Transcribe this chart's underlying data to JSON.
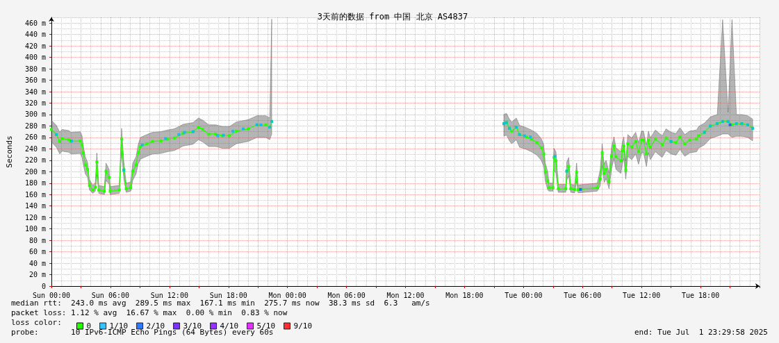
{
  "chart_data": {
    "type": "line",
    "title": "3天前的数据 from 中国 北京 AS4837",
    "ylabel": "Seconds",
    "legend_title": "loss color:",
    "xlim": [
      "2025-06-29T00:00",
      "2025-07-02T00:00"
    ],
    "ylim": [
      0,
      470
    ],
    "xticks": [
      {
        "value": "2025-06-29T00:00",
        "label": "Sun 00:00"
      },
      {
        "value": "2025-06-29T03:00",
        "label": null
      },
      {
        "value": "2025-06-29T06:00",
        "label": "Sun 06:00"
      },
      {
        "value": "2025-06-29T09:00",
        "label": null
      },
      {
        "value": "2025-06-29T12:00",
        "label": "Sun 12:00"
      },
      {
        "value": "2025-06-29T15:00",
        "label": null
      },
      {
        "value": "2025-06-29T18:00",
        "label": "Sun 18:00"
      },
      {
        "value": "2025-06-29T21:00",
        "label": null
      },
      {
        "value": "2025-06-30T00:00",
        "label": "Mon 00:00"
      },
      {
        "value": "2025-06-30T03:00",
        "label": null
      },
      {
        "value": "2025-06-30T06:00",
        "label": "Mon 06:00"
      },
      {
        "value": "2025-06-30T09:00",
        "label": null
      },
      {
        "value": "2025-06-30T12:00",
        "label": "Mon 12:00"
      },
      {
        "value": "2025-06-30T15:00",
        "label": null
      },
      {
        "value": "2025-06-30T18:00",
        "label": "Mon 18:00"
      },
      {
        "value": "2025-06-30T21:00",
        "label": null
      },
      {
        "value": "2025-07-01T00:00",
        "label": "Tue 00:00"
      },
      {
        "value": "2025-07-01T03:00",
        "label": null
      },
      {
        "value": "2025-07-01T06:00",
        "label": "Tue 06:00"
      },
      {
        "value": "2025-07-01T09:00",
        "label": null
      },
      {
        "value": "2025-07-01T12:00",
        "label": "Tue 12:00"
      },
      {
        "value": "2025-07-01T15:00",
        "label": null
      },
      {
        "value": "2025-07-01T18:00",
        "label": "Tue 18:00"
      },
      {
        "value": "2025-07-01T21:00",
        "label": null
      },
      {
        "value": "2025-07-02T00:00",
        "label": null
      }
    ],
    "yticks": [
      0,
      {
        "value": 20,
        "label": "20 m"
      },
      {
        "value": 40,
        "label": "40 m"
      },
      {
        "value": 60,
        "label": "60 m"
      },
      {
        "value": 80,
        "label": "80 m"
      },
      {
        "value": 100,
        "label": "100 m"
      },
      {
        "value": 120,
        "label": "120 m"
      },
      {
        "value": 140,
        "label": "140 m"
      },
      {
        "value": 160,
        "label": "160 m"
      },
      {
        "value": 180,
        "label": "180 m"
      },
      {
        "value": 200,
        "label": "200 m"
      },
      {
        "value": 220,
        "label": "220 m"
      },
      {
        "value": 240,
        "label": "240 m"
      },
      {
        "value": 260,
        "label": "260 m"
      },
      {
        "value": 280,
        "label": "280 m"
      },
      {
        "value": 300,
        "label": "300 m"
      },
      {
        "value": 320,
        "label": "320 m"
      },
      {
        "value": 340,
        "label": "340 m"
      },
      {
        "value": 360,
        "label": "360 m"
      },
      {
        "value": 380,
        "label": "380 m"
      },
      {
        "value": 400,
        "label": "400 m"
      },
      {
        "value": 420,
        "label": "420 m"
      },
      {
        "value": 440,
        "label": "440 m"
      },
      {
        "value": 460,
        "label": "460 m"
      }
    ],
    "grid": true,
    "legend": "bottom left",
    "marker": "square",
    "series": [
      {
        "name": "0",
        "color": "#26ff00",
        "x": [
          "2025-06-29T00:00",
          "2025-06-29T00:30",
          "2025-06-29T00:51",
          "2025-06-29T01:04",
          "2025-06-29T01:46",
          "2025-06-29T02:00",
          "2025-06-29T02:56",
          "2025-06-29T03:07",
          "2025-06-29T03:14",
          "2025-06-29T03:27",
          "2025-06-29T03:41",
          "2025-06-29T03:52",
          "2025-06-29T04:13",
          "2025-06-29T04:28",
          "2025-06-29T04:37",
          "2025-06-29T04:49",
          "2025-06-29T05:23",
          "2025-06-29T05:33",
          "2025-06-29T05:52",
          "2025-06-29T05:58",
          "2025-06-29T06:54",
          "2025-06-29T07:08",
          "2025-06-29T07:22",
          "2025-06-29T07:36",
          "2025-06-29T08:04",
          "2025-06-29T08:16",
          "2025-06-29T08:36",
          "2025-06-29T08:50",
          "2025-06-29T09:03",
          "2025-06-29T09:42",
          "2025-06-29T10:17",
          "2025-06-29T11:06",
          "2025-06-29T11:48",
          "2025-06-29T12:30",
          "2025-06-29T13:24",
          "2025-06-29T14:24",
          "2025-06-29T14:57",
          "2025-06-29T15:24",
          "2025-06-29T16:00",
          "2025-06-29T16:42",
          "2025-06-29T17:24",
          "2025-06-29T18:06",
          "2025-06-29T18:48",
          "2025-06-29T20:00",
          "2025-06-29T20:54",
          "2025-06-29T21:48",
          "2025-06-29T22:12",
          "2025-06-29T22:24",
          "2025-06-30T10:00",
          "2025-06-30T22:00",
          "2025-06-30T22:16",
          "2025-06-30T22:34",
          "2025-06-30T22:48",
          "2025-06-30T23:16",
          "2025-06-30T23:36",
          "2025-07-01T00:18",
          "2025-07-01T00:48",
          "2025-07-01T01:22",
          "2025-07-01T01:48",
          "2025-07-01T02:04",
          "2025-07-01T02:13",
          "2025-07-01T02:28",
          "2025-07-01T02:36",
          "2025-07-01T03:00",
          "2025-07-01T03:06",
          "2025-07-01T03:18",
          "2025-07-01T03:32",
          "2025-07-01T04:18",
          "2025-07-01T04:24",
          "2025-07-01T04:36",
          "2025-07-01T04:48",
          "2025-07-01T05:12",
          "2025-07-01T05:24",
          "2025-07-01T05:33",
          "2025-07-01T07:30",
          "2025-07-01T07:48",
          "2025-07-01T08:00",
          "2025-07-01T08:12",
          "2025-07-01T08:24",
          "2025-07-01T08:42",
          "2025-07-01T08:57",
          "2025-07-01T09:12",
          "2025-07-01T09:24",
          "2025-07-01T09:54",
          "2025-07-01T10:04",
          "2025-07-01T10:12",
          "2025-07-01T10:24",
          "2025-07-01T10:36",
          "2025-07-01T11:00",
          "2025-07-01T11:24",
          "2025-07-01T11:42",
          "2025-07-01T12:00",
          "2025-07-01T12:12",
          "2025-07-01T12:30",
          "2025-07-01T12:42",
          "2025-07-01T12:54",
          "2025-07-01T13:24",
          "2025-07-01T14:06",
          "2025-07-01T14:30",
          "2025-07-01T15:00",
          "2025-07-01T15:30",
          "2025-07-01T15:54",
          "2025-07-01T16:24",
          "2025-07-01T16:54",
          "2025-07-01T17:36",
          "2025-07-01T17:48",
          "2025-07-01T18:24",
          "2025-07-01T19:00",
          "2025-07-01T19:42",
          "2025-07-01T20:15",
          "2025-07-01T20:48",
          "2025-07-01T21:12",
          "2025-07-01T21:39",
          "2025-07-01T22:12",
          "2025-07-01T22:48",
          "2025-07-01T23:18"
        ],
        "values": [
          274,
          265,
          253,
          258,
          256,
          253,
          254,
          247,
          233,
          212,
          204,
          176,
          168,
          173,
          217,
          168,
          166,
          201,
          190,
          166,
          168,
          257,
          203,
          170,
          172,
          201,
          212,
          234,
          244,
          249,
          253,
          254,
          257,
          259,
          267,
          270,
          278,
          274,
          266,
          266,
          263,
          263,
          271,
          275,
          282,
          282,
          278,
          288,
          null,
          284,
          286,
          276,
          271,
          278,
          265,
          261,
          257,
          251,
          242,
          231,
          199,
          184,
          172,
          172,
          225,
          219,
          170,
          170,
          201,
          209,
          170,
          169,
          199,
          169,
          172,
          187,
          233,
          197,
          204,
          182,
          227,
          245,
          226,
          219,
          237,
          245,
          203,
          249,
          243,
          253,
          235,
          255,
          255,
          231,
          255,
          243,
          257,
          247,
          259,
          253,
          251,
          261,
          249,
          255,
          257,
          263,
          269,
          280,
          284,
          288,
          288,
          282,
          284,
          284,
          282,
          276
        ],
        "lower": [
          252,
          243,
          231,
          236,
          234,
          231,
          232,
          225,
          213,
          196,
          190,
          168,
          162,
          166,
          195,
          162,
          160,
          185,
          178,
          160,
          162,
          235,
          187,
          164,
          166,
          185,
          196,
          214,
          222,
          227,
          231,
          232,
          235,
          237,
          245,
          248,
          256,
          252,
          244,
          244,
          241,
          241,
          249,
          253,
          260,
          260,
          256,
          266,
          null,
          262,
          264,
          254,
          249,
          256,
          243,
          239,
          235,
          229,
          220,
          209,
          183,
          168,
          166,
          166,
          203,
          197,
          164,
          164,
          185,
          193,
          164,
          163,
          183,
          163,
          166,
          175,
          211,
          181,
          188,
          170,
          205,
          223,
          204,
          197,
          215,
          223,
          187,
          227,
          221,
          231,
          213,
          233,
          233,
          209,
          233,
          221,
          235,
          225,
          237,
          231,
          229,
          239,
          227,
          233,
          235,
          241,
          247,
          258,
          262,
          266,
          266,
          260,
          262,
          262,
          260,
          254
        ],
        "upper": [
          290,
          281,
          269,
          274,
          272,
          269,
          270,
          263,
          247,
          226,
          216,
          186,
          176,
          181,
          233,
          176,
          174,
          215,
          204,
          174,
          176,
          276,
          217,
          180,
          182,
          215,
          226,
          248,
          260,
          265,
          269,
          270,
          273,
          275,
          283,
          286,
          294,
          290,
          282,
          282,
          279,
          279,
          287,
          291,
          298,
          298,
          294,
          467,
          null,
          300,
          302,
          292,
          287,
          294,
          281,
          277,
          273,
          267,
          258,
          247,
          215,
          200,
          180,
          180,
          241,
          235,
          178,
          178,
          217,
          225,
          178,
          177,
          215,
          177,
          180,
          203,
          249,
          213,
          220,
          198,
          243,
          261,
          242,
          235,
          253,
          261,
          219,
          265,
          259,
          269,
          251,
          271,
          271,
          247,
          271,
          259,
          273,
          263,
          275,
          269,
          267,
          277,
          265,
          271,
          273,
          279,
          285,
          296,
          300,
          466,
          304,
          466,
          300,
          300,
          298,
          292
        ]
      },
      {
        "name": "1/10",
        "type": "scatter",
        "color": "#00b8ff",
        "x": [
          "2025-06-29T00:30",
          "2025-06-29T02:03",
          "2025-06-29T07:22",
          "2025-06-29T09:14",
          "2025-06-29T11:36",
          "2025-06-29T12:57",
          "2025-06-29T13:33",
          "2025-06-29T14:24",
          "2025-06-29T16:54",
          "2025-06-29T17:30",
          "2025-06-29T18:27",
          "2025-06-29T19:30",
          "2025-06-29T20:54",
          "2025-06-29T21:18",
          "2025-06-29T22:12",
          "2025-06-29T22:24",
          "2025-06-30T22:00",
          "2025-06-30T22:16",
          "2025-06-30T22:34",
          "2025-06-30T23:16",
          "2025-06-30T23:36",
          "2025-07-01T00:06",
          "2025-07-01T00:42",
          "2025-07-01T03:12",
          "2025-07-01T04:24",
          "2025-07-01T15:00",
          "2025-07-01T18:24",
          "2025-07-01T19:00",
          "2025-07-01T19:42",
          "2025-07-01T20:15",
          "2025-07-01T20:48",
          "2025-07-01T21:39",
          "2025-07-01T22:12",
          "2025-07-01T22:48",
          "2025-07-01T23:18"
        ],
        "values": [
          265,
          254,
          203,
          247,
          258,
          265,
          269,
          270,
          263,
          264,
          271,
          275,
          282,
          282,
          278,
          288,
          284,
          286,
          276,
          278,
          265,
          263,
          261,
          227,
          201,
          253,
          269,
          280,
          284,
          288,
          288,
          284,
          284,
          282,
          276
        ]
      },
      {
        "name": "2/10",
        "type": "scatter",
        "color": "#0059ff",
        "x": [
          "2025-07-01T05:48",
          "2025-07-01T21:00"
        ],
        "values": [
          169,
          282
        ]
      },
      {
        "name": "3/10",
        "type": "scatter",
        "color": "#5e00ff"
      },
      {
        "name": "4/10",
        "type": "scatter",
        "color": "#7e00ff"
      },
      {
        "name": "5/10",
        "type": "scatter",
        "color": "#dd00ff"
      },
      {
        "name": "9/10",
        "type": "scatter",
        "color": "#ff0000"
      }
    ],
    "annotations": [
      "median rtt:  243.0 ms avg  289.5 ms max  167.1 ms min  275.7 ms now  38.3 ms sd  6.3   am/s",
      "packet loss: 1.12 % avg  16.67 % max  0.00 % min  0.83 % now",
      "probe:       10 IPv6-ICMP Echo Pings (64 Bytes) every 60s",
      "end: Tue Jul  1 23:29:58 2025"
    ]
  }
}
